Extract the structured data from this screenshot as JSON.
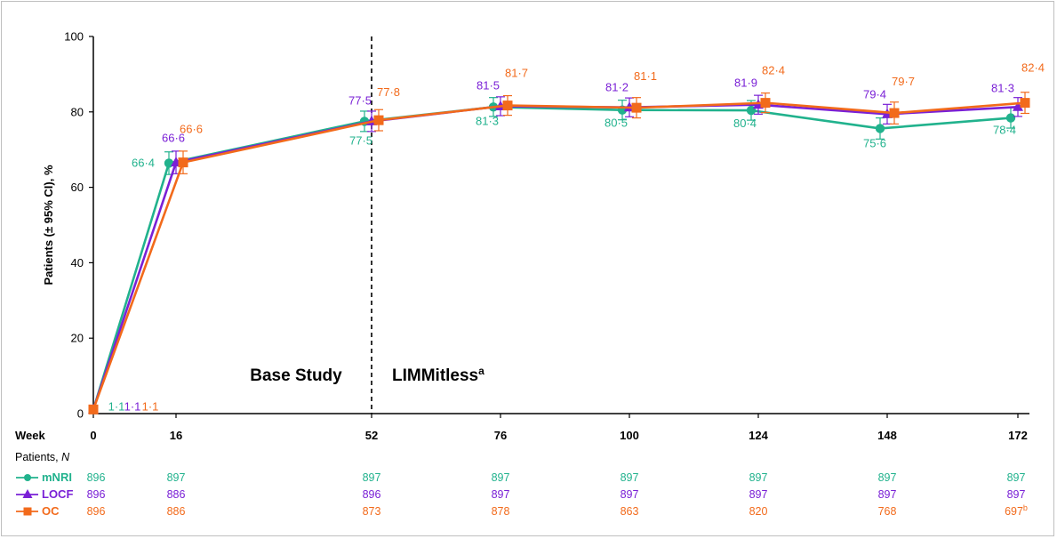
{
  "chart_data": {
    "type": "line",
    "ylabel": "Patients (± 95% CI), %",
    "x_axis_label": "Week",
    "x": [
      0,
      16,
      52,
      76,
      100,
      124,
      148,
      172
    ],
    "x_tick_labels": [
      "0",
      "16",
      "52",
      "76",
      "100",
      "124",
      "148",
      "172"
    ],
    "y_ticks": [
      0,
      20,
      40,
      60,
      80,
      100
    ],
    "ylim": [
      0,
      100
    ],
    "grid": false,
    "divider_week": 52,
    "region_labels": {
      "base": "Base Study",
      "ext": "LIMMitless",
      "ext_sup": "a"
    },
    "series": [
      {
        "name": "mNRI",
        "color": "#21b28d",
        "marker": "circle",
        "values": [
          1.1,
          66.4,
          77.5,
          81.3,
          80.5,
          80.4,
          75.6,
          78.4
        ],
        "labels": [
          "1·1",
          "66·4",
          "77·5",
          "81·3",
          "80·5",
          "80·4",
          "75·6",
          "78·4"
        ],
        "ci_half": [
          0,
          3.0,
          2.7,
          2.5,
          2.6,
          2.6,
          2.8,
          2.7
        ]
      },
      {
        "name": "LOCF",
        "color": "#7a20d6",
        "marker": "triangle",
        "values": [
          1.1,
          66.6,
          77.5,
          81.5,
          81.2,
          81.9,
          79.4,
          81.3
        ],
        "labels": [
          "1·1",
          "66·6",
          "77·5",
          "81·5",
          "81·2",
          "81·9",
          "79·4",
          "81·3"
        ],
        "ci_half": [
          0,
          3.0,
          2.7,
          2.5,
          2.5,
          2.5,
          2.6,
          2.5
        ]
      },
      {
        "name": "OC",
        "color": "#f26a1b",
        "marker": "square",
        "values": [
          1.1,
          66.6,
          77.8,
          81.7,
          81.1,
          82.4,
          79.7,
          82.4
        ],
        "labels": [
          "1·1",
          "66·6",
          "77·8",
          "81·7",
          "81·1",
          "82·4",
          "79·7",
          "82·4"
        ],
        "ci_half": [
          0,
          3.0,
          2.8,
          2.6,
          2.7,
          2.6,
          2.9,
          2.8
        ]
      }
    ]
  },
  "patients_table": {
    "header": "Patients,",
    "header_n": "N",
    "rows": [
      {
        "name": "mNRI",
        "counts": [
          "896",
          "897",
          "897",
          "897",
          "897",
          "897",
          "897",
          "897"
        ],
        "last_sup": ""
      },
      {
        "name": "LOCF",
        "counts": [
          "896",
          "886",
          "896",
          "897",
          "897",
          "897",
          "897",
          "897"
        ],
        "last_sup": ""
      },
      {
        "name": "OC",
        "counts": [
          "896",
          "886",
          "873",
          "878",
          "863",
          "820",
          "768",
          "697"
        ],
        "last_sup": "b"
      }
    ]
  }
}
